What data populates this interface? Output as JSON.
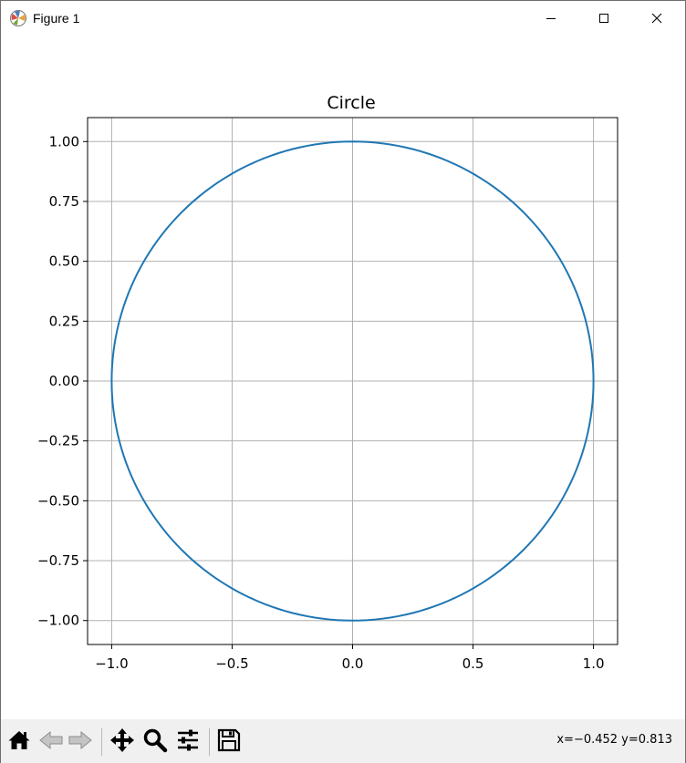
{
  "window": {
    "title": "Figure 1",
    "app_icon": "matplotlib-icon",
    "controls": [
      "minimize-icon",
      "maximize-icon",
      "close-icon"
    ]
  },
  "chart_data": {
    "type": "line",
    "title": "Circle",
    "xlabel": "",
    "ylabel": "",
    "xlim": [
      -1.1,
      1.1
    ],
    "ylim": [
      -1.1,
      1.1
    ],
    "xticks": [
      -1.0,
      -0.5,
      0.0,
      0.5,
      1.0
    ],
    "xtick_labels": [
      "−1.0",
      "−0.5",
      "0.0",
      "0.5",
      "1.0"
    ],
    "yticks": [
      1.0,
      0.75,
      0.5,
      0.25,
      0.0,
      -0.25,
      -0.5,
      -0.75,
      -1.0
    ],
    "ytick_labels": [
      "1.00",
      "0.75",
      "0.50",
      "0.25",
      "0.00",
      "−0.25",
      "−0.50",
      "−0.75",
      "−1.00"
    ],
    "grid": true,
    "series": [
      {
        "color": "#1f77b4",
        "x": [
          1.0,
          0.966,
          0.866,
          0.707,
          0.5,
          0.259,
          0.0,
          -0.259,
          -0.5,
          -0.707,
          -0.866,
          -0.966,
          -1.0,
          -0.966,
          -0.866,
          -0.707,
          -0.5,
          -0.259,
          0.0,
          0.259,
          0.5,
          0.707,
          0.866,
          0.966,
          1.0
        ],
        "y": [
          0.0,
          0.259,
          0.5,
          0.707,
          0.866,
          0.966,
          1.0,
          0.966,
          0.866,
          0.707,
          0.5,
          0.259,
          0.0,
          -0.259,
          -0.5,
          -0.707,
          -0.866,
          -0.966,
          -1.0,
          -0.966,
          -0.866,
          -0.707,
          -0.5,
          -0.259,
          0.0
        ]
      }
    ]
  },
  "toolbar": {
    "buttons": [
      {
        "icon": "home-icon"
      },
      {
        "icon": "back-arrow-icon"
      },
      {
        "icon": "forward-arrow-icon"
      },
      {
        "icon": "pan-move-icon"
      },
      {
        "icon": "zoom-magnifier-icon"
      },
      {
        "icon": "configure-subplots-icon"
      },
      {
        "icon": "save-floppy-icon"
      }
    ],
    "coords": "x=−0.452 y=0.813"
  }
}
